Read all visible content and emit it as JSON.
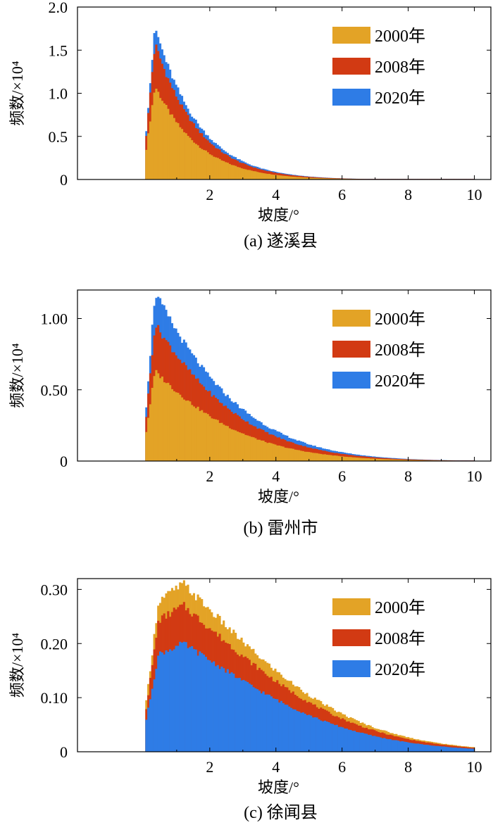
{
  "colors": {
    "c2000": "#E3A326",
    "c2008": "#D23A13",
    "c2020": "#2E7CE6"
  },
  "chart_data": [
    {
      "type": "bar",
      "panel": "a",
      "caption": "(a) 遂溪县",
      "xlabel": "坡度/°",
      "ylabel": "频数/×10⁴",
      "xlim": [
        -2,
        10.5
      ],
      "ylim": [
        0,
        2.0
      ],
      "xticks": [
        "2",
        "4",
        "6",
        "8",
        "10"
      ],
      "yticks": [
        "0",
        "0.5",
        "1.0",
        "1.5",
        "2.0"
      ],
      "legend_position": "top-right",
      "shape": {
        "start": 0.05,
        "rise_end": 0.3,
        "peak": 0.35,
        "decay_a": 0.75,
        "decay_b": 0.02,
        "end": 10.0
      },
      "series": [
        {
          "name": "2000年",
          "color_key": "c2000",
          "peak_value": 1.08
        },
        {
          "name": "2008年",
          "color_key": "c2008",
          "peak_value": 1.57
        },
        {
          "name": "2020年",
          "color_key": "c2020",
          "peak_value": 1.76
        }
      ]
    },
    {
      "type": "bar",
      "panel": "b",
      "caption": "(b) 雷州市",
      "xlabel": "坡度/°",
      "ylabel": "频数/×10⁴",
      "xlim": [
        -2,
        10.5
      ],
      "ylim": [
        0,
        1.2
      ],
      "xticks": [
        "2",
        "4",
        "6",
        "8",
        "10"
      ],
      "yticks": [
        "0",
        "0.50",
        "1.00"
      ],
      "legend_position": "top-right",
      "shape": {
        "start": 0.05,
        "rise_end": 0.3,
        "peak": 0.35,
        "decay_a": 0.38,
        "decay_b": 0.025,
        "end": 10.0
      },
      "series": [
        {
          "name": "2000年",
          "color_key": "c2000",
          "peak_value": 0.63
        },
        {
          "name": "2008年",
          "color_key": "c2008",
          "peak_value": 0.96
        },
        {
          "name": "2020年",
          "color_key": "c2020",
          "peak_value": 1.18
        }
      ]
    },
    {
      "type": "bar",
      "panel": "c",
      "caption": "(c) 徐闻县",
      "xlabel": "坡度/°",
      "ylabel": "频数/×10⁴",
      "xlim": [
        -2,
        10.5
      ],
      "ylim": [
        0,
        0.32
      ],
      "xticks": [
        "2",
        "4",
        "6",
        "8",
        "10"
      ],
      "yticks": [
        "0",
        "0.10",
        "0.20",
        "0.30"
      ],
      "legend_position": "top-right",
      "shape": {
        "start": 0.05,
        "rise_end": 0.45,
        "peak": 1.2,
        "decay_a": 0.19,
        "decay_b": 0.025,
        "end": 10.0
      },
      "series": [
        {
          "name": "2000年",
          "color_key": "c2000",
          "peak_value": 0.31
        },
        {
          "name": "2008年",
          "color_key": "c2008",
          "peak_value": 0.27
        },
        {
          "name": "2020年",
          "color_key": "c2020",
          "peak_value": 0.2
        }
      ]
    }
  ]
}
